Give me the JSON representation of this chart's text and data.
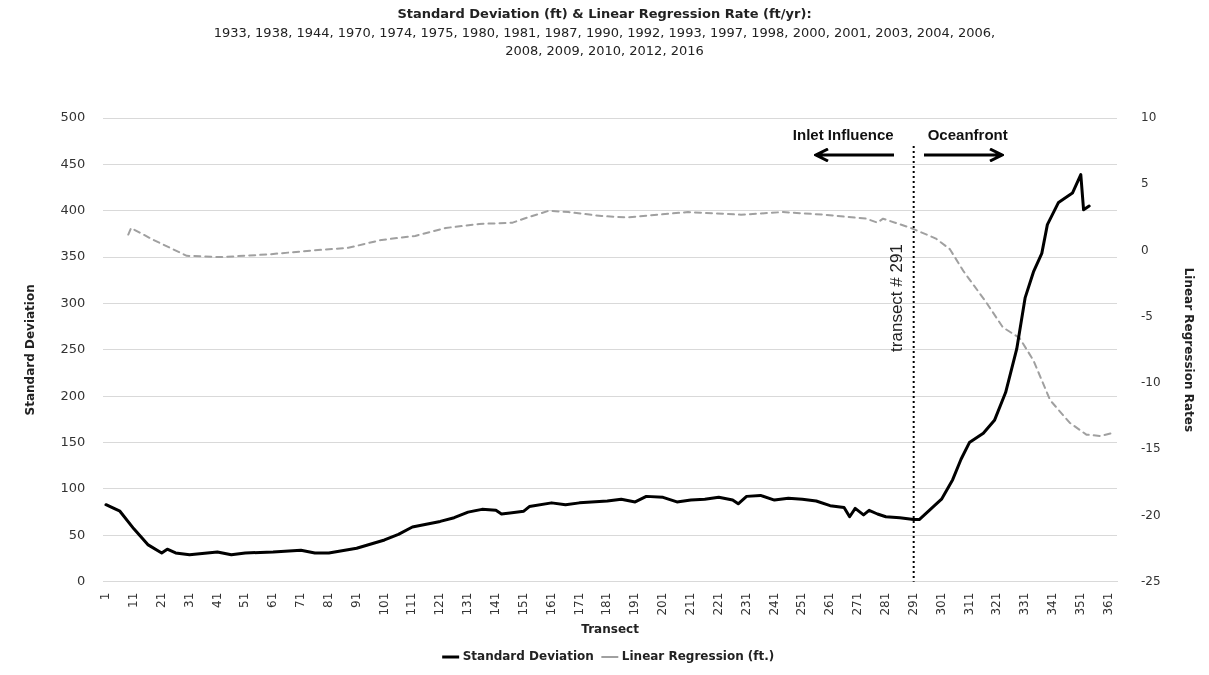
{
  "chart_data": {
    "type": "line",
    "title": "Standard Deviation (ft) & Linear Regression Rate (ft/yr):",
    "subtitle": "1933, 1938, 1944, 1970, 1974, 1975, 1980, 1981, 1987, 1990, 1992, 1993, 1997, 1998, 2000, 2001, 2003, 2004, 2006, 2008, 2009, 2010, 2012, 2016",
    "xlabel": "Transect",
    "ylabel": "Standard Deviation",
    "y2label": "Linear Regression Rates",
    "xlim": [
      0,
      364
    ],
    "xticks": [
      1,
      11,
      21,
      31,
      41,
      51,
      61,
      71,
      81,
      91,
      101,
      111,
      121,
      131,
      141,
      151,
      161,
      171,
      181,
      191,
      201,
      211,
      221,
      231,
      241,
      251,
      261,
      271,
      281,
      291,
      301,
      311,
      321,
      331,
      341,
      351,
      361
    ],
    "ylim": [
      0,
      500
    ],
    "yticks": [
      0,
      50,
      100,
      150,
      200,
      250,
      300,
      350,
      400,
      450,
      500
    ],
    "y2lim": [
      -25,
      10
    ],
    "y2ticks": [
      -25,
      -20,
      -15,
      -10,
      -5,
      0,
      5,
      10
    ],
    "series": [
      {
        "name": "Standard Deviation",
        "color": "#000000",
        "line_style": "solid",
        "x": [
          1,
          6,
          11,
          16,
          21,
          23,
          26,
          31,
          41,
          46,
          51,
          61,
          71,
          76,
          81,
          91,
          101,
          106,
          111,
          116,
          121,
          126,
          131,
          136,
          141,
          143,
          151,
          153,
          161,
          166,
          171,
          181,
          186,
          191,
          195,
          201,
          206,
          211,
          216,
          221,
          226,
          228,
          231,
          236,
          241,
          246,
          251,
          256,
          261,
          266,
          268,
          270,
          273,
          275,
          278,
          281,
          286,
          291,
          293,
          301,
          305,
          308,
          311,
          316,
          320,
          324,
          328,
          331,
          334,
          337,
          339,
          343,
          348,
          351,
          352,
          354
        ],
        "values": [
          83,
          76,
          57,
          40,
          31,
          35,
          31,
          29,
          32,
          29,
          31,
          32,
          34,
          31,
          31,
          36,
          45,
          51,
          59,
          62,
          65,
          69,
          75,
          78,
          77,
          73,
          76,
          81,
          85,
          83,
          85,
          87,
          89,
          86,
          92,
          91,
          86,
          88,
          89,
          91,
          88,
          84,
          92,
          93,
          88,
          90,
          89,
          87,
          82,
          80,
          70,
          79,
          72,
          77,
          73,
          70,
          69,
          67,
          67,
          89,
          110,
          132,
          150,
          160,
          174,
          204,
          251,
          306,
          334,
          354,
          385,
          409,
          419,
          439,
          401,
          405
        ]
      },
      {
        "name": "Linear Regression (ft.)",
        "color": "#a0a0a0",
        "axis": "y2",
        "line_style": "dashed",
        "x": [
          9,
          10,
          18,
          30,
          42,
          59,
          75,
          88,
          100,
          112,
          123,
          135,
          147,
          151,
          160,
          167,
          179,
          188,
          210,
          229,
          244,
          259,
          274,
          278,
          280,
          290,
          299,
          304,
          309,
          317,
          323,
          329,
          334,
          340,
          347,
          353,
          358,
          362
        ],
        "values": [
          1.2,
          1.7,
          0.8,
          -0.4,
          -0.5,
          -0.3,
          0,
          0.2,
          0.8,
          1.1,
          1.7,
          2,
          2.1,
          2.4,
          3,
          2.9,
          2.6,
          2.5,
          2.9,
          2.7,
          2.9,
          2.7,
          2.4,
          2.1,
          2.4,
          1.7,
          0.9,
          0.1,
          -1.6,
          -3.9,
          -5.8,
          -6.6,
          -8.3,
          -11.3,
          -13,
          -13.9,
          -14,
          -13.8
        ]
      }
    ],
    "ref_lines": [
      {
        "axis": "x",
        "value": 291,
        "label": "transect # 291",
        "line_style": "dotted",
        "color": "#000000"
      }
    ],
    "annotations": [
      "Inlet Influence",
      "Oceanfront"
    ],
    "grid": "y",
    "legend": "bottom",
    "marker": "none"
  }
}
